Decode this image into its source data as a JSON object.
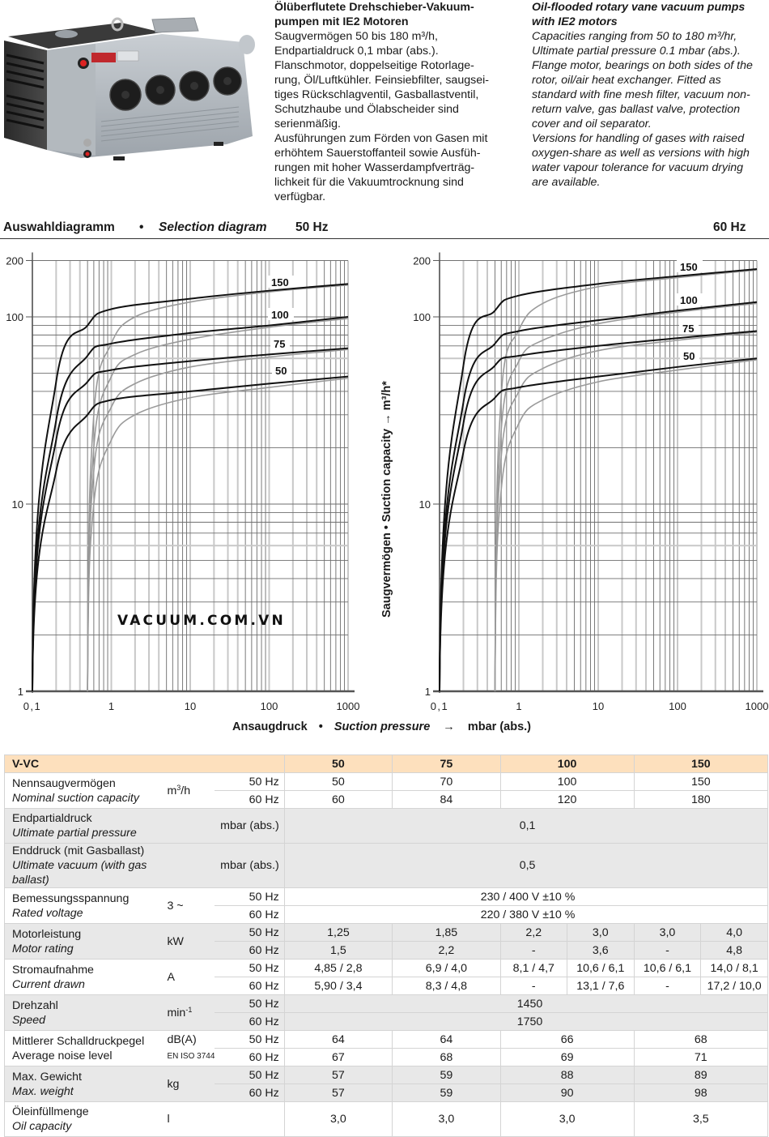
{
  "product": {
    "image_alt": "Oil-flooded rotary vane vacuum pump"
  },
  "description_de": {
    "title": "Ölüberflutete Drehschieber-Vakuum-pumpen mit IE2 Motoren",
    "lines": [
      "Saugvermögen 50 bis 180 m³/h,",
      "Endpartialdruck  0,1 mbar (abs.).",
      "Flanschmotor, doppelseitige Rotorlage-",
      "rung, Öl/Luftkühler. Feinsiebfilter, saugsei-",
      "tiges Rückschlagventil, Gasballastventil,",
      "Schutzhaube und Ölabscheider sind",
      "serienmäßig.",
      "Ausführungen zum Förden von Gasen mit",
      "erhöhtem Sauerstoffanteil sowie Ausfüh-",
      "rungen mit hoher Wasserdampfverträg-",
      "lichkeit für die Vakuumtrocknung sind",
      "verfügbar."
    ],
    "title_lines": [
      "Ölüberflutete Drehschieber-Vakuum-",
      "pumpen mit IE2 Motoren"
    ]
  },
  "description_en": {
    "title_lines": [
      "Oil-flooded rotary vane vacuum pumps",
      "with IE2 motors"
    ],
    "lines": [
      "Capacities ranging from 50 to 180 m³/hr,",
      "Ultimate partial pressure  0.1 mbar (abs.).",
      "Flange motor, bearings on both sides of the",
      "rotor, oil/air heat exchanger. Fitted as",
      "standard with fine mesh filter, vacuum non-",
      "return valve, gas ballast valve, protection",
      "cover and oil separator.",
      "Versions for handling of gases with raised",
      "oxygen-share as well as versions with high",
      "water vapour tolerance for vacuum drying",
      "are available."
    ]
  },
  "section": {
    "title_de": "Auswahldiagramm",
    "bullet": "•",
    "title_en": "Selection diagram",
    "freq_left": "50 Hz",
    "freq_right": "60 Hz"
  },
  "axis_labels": {
    "y": "Saugvermögen  •  Suction capacity  →  m³/h*",
    "x_de": "Ansaugdruck",
    "x_bullet": "•",
    "x_en": "Suction pressure",
    "x_arrow": "→",
    "x_unit": "mbar (abs.)"
  },
  "watermark": "VACUUM.COM.VN",
  "chart_data": [
    {
      "type": "line",
      "title": "50 Hz",
      "xscale": "log",
      "yscale": "log",
      "xlim": [
        0.1,
        1000
      ],
      "ylim": [
        1,
        200
      ],
      "xticks": [
        "0,1",
        "1",
        "10",
        "100",
        "1000"
      ],
      "yticks": [
        "1",
        "10",
        "100",
        "200"
      ],
      "grid": true,
      "xlabel": "Ansaugdruck • Suction pressure → mbar (abs.)",
      "ylabel": "Saugvermögen • Suction capacity → m³/h*",
      "series": [
        {
          "name": "150",
          "style": "black",
          "x": [
            0.1,
            0.2,
            0.5,
            1,
            10,
            100,
            1000
          ],
          "y": [
            1,
            45,
            90,
            110,
            125,
            138,
            150
          ]
        },
        {
          "name": "100",
          "style": "black",
          "x": [
            0.1,
            0.2,
            0.5,
            1,
            10,
            100,
            1000
          ],
          "y": [
            1,
            28,
            62,
            72,
            82,
            90,
            100
          ]
        },
        {
          "name": "75",
          "style": "black",
          "x": [
            0.1,
            0.2,
            0.5,
            1,
            10,
            100,
            1000
          ],
          "y": [
            1,
            22,
            45,
            52,
            58,
            63,
            68
          ]
        },
        {
          "name": "50",
          "style": "black",
          "x": [
            0.1,
            0.2,
            0.5,
            1,
            10,
            100,
            1000
          ],
          "y": [
            1,
            15,
            30,
            36,
            40,
            44,
            48
          ]
        },
        {
          "name": "150 gas ballast",
          "style": "gray",
          "x": [
            0.5,
            0.6,
            1,
            2,
            10,
            100,
            1000
          ],
          "y": [
            1,
            30,
            72,
            100,
            120,
            136,
            148
          ]
        },
        {
          "name": "100 gas ballast",
          "style": "gray",
          "x": [
            0.5,
            0.6,
            1,
            2,
            10,
            100,
            1000
          ],
          "y": [
            1,
            20,
            48,
            63,
            76,
            88,
            98
          ]
        },
        {
          "name": "75 gas ballast",
          "style": "gray",
          "x": [
            0.5,
            0.6,
            1,
            2,
            10,
            100,
            1000
          ],
          "y": [
            1,
            15,
            33,
            44,
            54,
            61,
            67
          ]
        },
        {
          "name": "50 gas ballast",
          "style": "gray",
          "x": [
            0.5,
            0.6,
            1,
            2,
            10,
            100,
            1000
          ],
          "y": [
            1,
            10,
            22,
            30,
            37,
            42,
            47
          ]
        }
      ],
      "curve_labels": [
        "150",
        "100",
        "75",
        "50"
      ]
    },
    {
      "type": "line",
      "title": "60 Hz",
      "xscale": "log",
      "yscale": "log",
      "xlim": [
        0.1,
        1000
      ],
      "ylim": [
        1,
        200
      ],
      "xticks": [
        "0,1",
        "1",
        "10",
        "100",
        "1000"
      ],
      "yticks": [
        "1",
        "10",
        "100",
        "200"
      ],
      "grid": true,
      "series": [
        {
          "name": "150",
          "style": "black",
          "x": [
            0.1,
            0.2,
            0.5,
            1,
            10,
            100,
            1000
          ],
          "y": [
            1,
            55,
            108,
            130,
            150,
            165,
            180
          ]
        },
        {
          "name": "100",
          "style": "black",
          "x": [
            0.1,
            0.2,
            0.5,
            1,
            10,
            100,
            1000
          ],
          "y": [
            1,
            35,
            72,
            84,
            96,
            108,
            120
          ]
        },
        {
          "name": "75",
          "style": "black",
          "x": [
            0.1,
            0.2,
            0.5,
            1,
            10,
            100,
            1000
          ],
          "y": [
            1,
            27,
            55,
            62,
            70,
            77,
            84
          ]
        },
        {
          "name": "50",
          "style": "black",
          "x": [
            0.1,
            0.2,
            0.5,
            1,
            10,
            100,
            1000
          ],
          "y": [
            1,
            19,
            37,
            42,
            48,
            54,
            60
          ]
        },
        {
          "name": "150 gas ballast",
          "style": "gray",
          "x": [
            0.5,
            0.6,
            1,
            2,
            10,
            100,
            1000
          ],
          "y": [
            1,
            38,
            85,
            118,
            145,
            162,
            178
          ]
        },
        {
          "name": "100 gas ballast",
          "style": "gray",
          "x": [
            0.5,
            0.6,
            1,
            2,
            10,
            100,
            1000
          ],
          "y": [
            1,
            25,
            58,
            75,
            92,
            106,
            118
          ]
        },
        {
          "name": "75 gas ballast",
          "style": "gray",
          "x": [
            0.5,
            0.6,
            1,
            2,
            10,
            100,
            1000
          ],
          "y": [
            1,
            18,
            40,
            53,
            66,
            75,
            83
          ]
        },
        {
          "name": "50 gas ballast",
          "style": "gray",
          "x": [
            0.5,
            0.6,
            1,
            2,
            10,
            100,
            1000
          ],
          "y": [
            1,
            12,
            27,
            36,
            45,
            52,
            59
          ]
        }
      ],
      "curve_labels": [
        "150",
        "100",
        "75",
        "50"
      ]
    }
  ],
  "table": {
    "model": "V-VC",
    "columns": [
      "50",
      "75",
      "100",
      "150"
    ],
    "rows": {
      "capacity": {
        "de": "Nennsaugvermögen",
        "en": "Nominal suction capacity",
        "unit": "m³/h",
        "hz": [
          "50 Hz",
          "60 Hz"
        ],
        "v50": [
          "50",
          "70",
          "100",
          "150"
        ],
        "v60": [
          "60",
          "84",
          "120",
          "180"
        ]
      },
      "partial": {
        "de": "Endpartialdruck",
        "en": "Ultimate partial pressure",
        "unit": "mbar (abs.)",
        "value": "0,1"
      },
      "ultimate": {
        "de": "Enddruck  (mit Gasballast)",
        "en": "Ultimate vacuum (with gas ballast)",
        "unit": "mbar (abs.)",
        "value": "0,5"
      },
      "voltage": {
        "de": "Bemessungsspannung",
        "en": "Rated voltage",
        "unit": "3 ~",
        "hz": [
          "50 Hz",
          "60 Hz"
        ],
        "v50": "230 / 400 V ±10 %",
        "v60": "220 / 380 V ±10 %"
      },
      "motor": {
        "de": "Motorleistung",
        "en": "Motor rating",
        "unit": "kW",
        "hz": [
          "50 Hz",
          "60 Hz"
        ],
        "v50": [
          "1,25",
          "1,85",
          "2,2",
          "3,0",
          "3,0",
          "4,0"
        ],
        "v60": [
          "1,5",
          "2,2",
          "-",
          "3,6",
          "-",
          "4,8"
        ]
      },
      "current": {
        "de": "Stromaufnahme",
        "en": "Current drawn",
        "unit": "A",
        "hz": [
          "50 Hz",
          "60 Hz"
        ],
        "v50": [
          "4,85 / 2,8",
          "6,9 / 4,0",
          "8,1 / 4,7",
          "10,6 / 6,1",
          "10,6 / 6,1",
          "14,0 / 8,1"
        ],
        "v60": [
          "5,90 / 3,4",
          "8,3 / 4,8",
          "-",
          "13,1 / 7,6",
          "-",
          "17,2 / 10,0"
        ]
      },
      "speed": {
        "de": "Drehzahl",
        "en": "Speed",
        "unit": "min",
        "unit_sup": "-1",
        "hz": [
          "50 Hz",
          "60 Hz"
        ],
        "v50": "1450",
        "v60": "1750"
      },
      "noise": {
        "de": "Mittlerer Schalldruckpegel",
        "en": "Average noise level",
        "unit": "dB(A)",
        "unit_note": "EN ISO 3744",
        "hz": [
          "50 Hz",
          "60 Hz"
        ],
        "v50": [
          "64",
          "64",
          "66",
          "68"
        ],
        "v60": [
          "67",
          "68",
          "69",
          "71"
        ]
      },
      "weight": {
        "de": "Max. Gewicht",
        "en": "Max. weight",
        "unit": "kg",
        "hz": [
          "50 Hz",
          "60 Hz"
        ],
        "v50": [
          "57",
          "59",
          "88",
          "89"
        ],
        "v60": [
          "57",
          "59",
          "90",
          "98"
        ]
      },
      "oil": {
        "de": "Öleinfüllmenge",
        "en": "Oil capacity",
        "unit": "l",
        "values": [
          "3,0",
          "3,0",
          "3,0",
          "3,5"
        ]
      }
    }
  },
  "colors": {
    "header_bg": "#fde0bd",
    "gray_row": "#e8e8e8",
    "curve_main": "#111111",
    "curve_ballast": "#9a9a9a"
  }
}
